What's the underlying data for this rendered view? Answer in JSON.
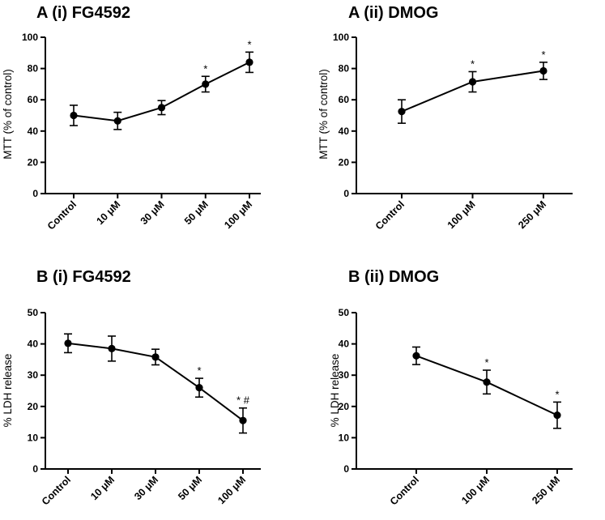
{
  "chart_data": [
    {
      "type": "line",
      "title": "A (i) FG4592",
      "ylabel": "MTT (% of control)",
      "ylim": [
        0,
        100
      ],
      "yticks": [
        0,
        20,
        40,
        60,
        80,
        100
      ],
      "categories": [
        "Control",
        "10 μM",
        "30 μM",
        "50 μM",
        "100 μM"
      ],
      "values": [
        50,
        46.5,
        55,
        70,
        84
      ],
      "errors": [
        6.5,
        5.5,
        4.5,
        5,
        6.5
      ],
      "annotations": [
        "",
        "",
        "",
        "*",
        "*"
      ],
      "grid": false
    },
    {
      "type": "line",
      "title": "A (ii) DMOG",
      "ylabel": "MTT (% of control)",
      "ylim": [
        0,
        100
      ],
      "yticks": [
        0,
        20,
        40,
        60,
        80,
        100
      ],
      "categories": [
        "Control",
        "100 μM",
        "250 μM"
      ],
      "values": [
        52.5,
        71.5,
        78.5
      ],
      "errors": [
        7.5,
        6.5,
        5.5
      ],
      "annotations": [
        "",
        "*",
        "*"
      ],
      "grid": false
    },
    {
      "type": "line",
      "title": "B (i) FG4592",
      "ylabel": "% LDH release",
      "ylim": [
        0,
        50
      ],
      "yticks": [
        0,
        10,
        20,
        30,
        40,
        50
      ],
      "categories": [
        "Control",
        "10 μM",
        "30 μM",
        "50 μM",
        "100 μM"
      ],
      "values": [
        40.2,
        38.5,
        35.8,
        26,
        15.5
      ],
      "errors": [
        3,
        4,
        2.5,
        3,
        4
      ],
      "annotations": [
        "",
        "",
        "",
        "*",
        "* #"
      ],
      "grid": false
    },
    {
      "type": "line",
      "title": "B (ii) DMOG",
      "ylabel": "% LDH release",
      "ylim": [
        0,
        50
      ],
      "yticks": [
        0,
        10,
        20,
        30,
        40,
        50
      ],
      "categories": [
        "Control",
        "100 μM",
        "250 μM"
      ],
      "values": [
        36.2,
        27.8,
        17.2
      ],
      "errors": [
        2.8,
        3.8,
        4.2
      ],
      "annotations": [
        "",
        "*",
        "*"
      ],
      "grid": false
    }
  ]
}
